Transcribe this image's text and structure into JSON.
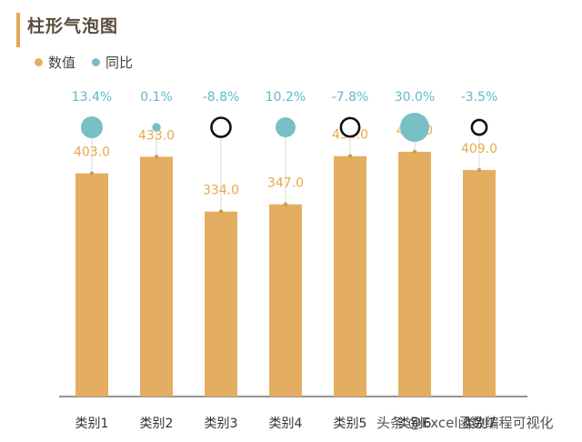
{
  "title": "柱形气泡图",
  "legend": [
    {
      "label": "数值",
      "color": "#e3ae62"
    },
    {
      "label": "同比",
      "color": "#78bfc6"
    }
  ],
  "watermark": "头条 @Excel函数编程可视化",
  "colors": {
    "bar": "#e3ae62",
    "bar_label": "#e8a94a",
    "bubble_positive": "#78bfc6",
    "bubble_negative_stroke": "#111111",
    "pct_label": "#62b9c4",
    "axis": "#555555",
    "category_label": "#333333"
  },
  "chart_data": {
    "type": "bar",
    "title": "柱形气泡图",
    "categories": [
      "类别1",
      "类别2",
      "类别3",
      "类别4",
      "类别5",
      "类别6",
      "类别7"
    ],
    "series": [
      {
        "name": "数值",
        "values": [
          403.0,
          433.0,
          334.0,
          347.0,
          434.0,
          442.0,
          409.0
        ],
        "labels": [
          "403.0",
          "433.0",
          "334.0",
          "347.0",
          "434.0",
          "442.0",
          "409.0"
        ]
      },
      {
        "name": "同比",
        "values": [
          0.134,
          0.001,
          -0.088,
          0.102,
          -0.078,
          0.3,
          -0.035
        ],
        "labels": [
          "13.4%",
          "0.1%",
          "-8.8%",
          "10.2%",
          "-7.8%",
          "30.0%",
          "-3.5%"
        ]
      }
    ],
    "ylim": [
      0,
      560
    ],
    "grid": false,
    "legend_position": "top-left"
  }
}
